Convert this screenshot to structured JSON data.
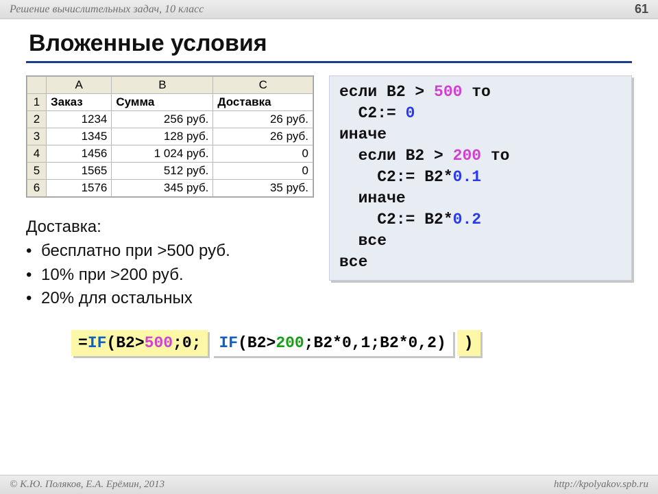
{
  "header": {
    "title": "Решение вычислительных задач, 10 класс",
    "page": "61"
  },
  "slide": {
    "title": "Вложенные условия"
  },
  "sheet": {
    "col_heads": [
      "A",
      "B",
      "C"
    ],
    "row_heads": [
      "1",
      "2",
      "3",
      "4",
      "5",
      "6"
    ],
    "header_row": [
      "Заказ",
      "Сумма",
      "Доставка"
    ],
    "rows": [
      [
        "1234",
        "256 руб.",
        "26 руб."
      ],
      [
        "1345",
        "128 руб.",
        "26 руб."
      ],
      [
        "1456",
        "1 024 руб.",
        "0"
      ],
      [
        "1565",
        "512 руб.",
        "0"
      ],
      [
        "1576",
        "345 руб.",
        "35 руб."
      ]
    ],
    "colors": {
      "grid_bg": "#ece9d8",
      "border": "#b8b8b8"
    }
  },
  "rules": {
    "title": "Доставка:",
    "items": [
      "бесплатно при >500 руб.",
      "10% при >200 руб.",
      "20% для остальных"
    ]
  },
  "pseudocode": {
    "l1a": "если B2 > ",
    "l1b": "500",
    "l1c": " то",
    "l2a": "  С2:= ",
    "l2b": "0",
    "l3": "иначе",
    "l4a": "  если B2 > ",
    "l4b": "200",
    "l4c": " то",
    "l5a": "    С2:= B2*",
    "l5b": "0.1",
    "l6": "  иначе",
    "l7a": "    С2:= B2*",
    "l7b": "0.2",
    "l8": "  все",
    "l9": "все",
    "colors": {
      "bg": "#e8ecf3",
      "shadow": "#c6c6c6",
      "blue": "#2a3aea",
      "pink": "#d042d0"
    }
  },
  "formula": {
    "outer_pre_eq": "=",
    "outer_fn": "IF",
    "outer_open": "(B2>",
    "outer_num": "500",
    "outer_mid": ";0;",
    "inner_fn": "IF",
    "inner_open": "(B2>",
    "inner_num": "200",
    "inner_rest": ";B2*0,1;B2*0,2)",
    "outer_close": ")",
    "colors": {
      "outer_bg": "#fdf7a8",
      "inner_bg": "#ffffff",
      "fn": "#1060c0",
      "n500": "#d042d0",
      "n200": "#16a016"
    }
  },
  "footer": {
    "left": "© К.Ю. Поляков, Е.А. Ерёмин, 2013",
    "right": "http://kpolyakov.spb.ru"
  }
}
